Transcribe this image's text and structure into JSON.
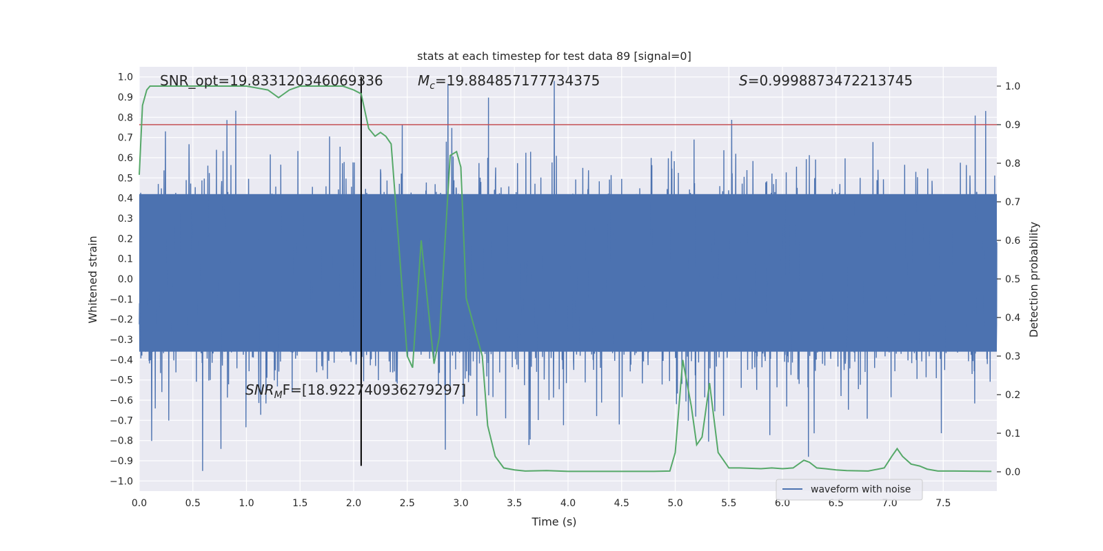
{
  "chart_data": {
    "type": "line",
    "title": "stats at each timestep for test data 89 [signal=0]",
    "xlabel": "Time (s)",
    "ylabel_left": "Whitened strain",
    "ylabel_right": "Detection probability",
    "xlim": [
      0,
      8
    ],
    "ylim_left": [
      -1.05,
      1.05
    ],
    "ylim_right": [
      -0.05,
      1.05
    ],
    "x_ticks": [
      0.0,
      0.5,
      1.0,
      1.5,
      2.0,
      2.5,
      3.0,
      3.5,
      4.0,
      4.5,
      5.0,
      5.5,
      6.0,
      6.5,
      7.0,
      7.5
    ],
    "x_tick_labels": [
      "0.0",
      "0.5",
      "1.0",
      "1.5",
      "2.0",
      "2.5",
      "3.0",
      "3.5",
      "4.0",
      "4.5",
      "5.0",
      "5.5",
      "6.0",
      "6.5",
      "7.0",
      "7.5"
    ],
    "y_left_ticks": [
      1.0,
      0.9,
      0.8,
      0.7,
      0.6,
      0.5,
      0.4,
      0.3,
      0.2,
      0.1,
      0.0,
      -0.1,
      -0.2,
      -0.3,
      -0.4,
      -0.5,
      -0.6,
      -0.7,
      -0.8,
      -0.9,
      -1.0
    ],
    "y_left_tick_labels": [
      "1.0",
      "0.9",
      "0.8",
      "0.7",
      "0.6",
      "0.5",
      "0.4",
      "0.3",
      "0.2",
      "0.1",
      "0.0",
      "−0.1",
      "−0.2",
      "−0.3",
      "−0.4",
      "−0.5",
      "−0.6",
      "−0.7",
      "−0.8",
      "−0.9",
      "−1.0"
    ],
    "y_right_ticks": [
      1.0,
      0.9,
      0.8,
      0.7,
      0.6,
      0.5,
      0.4,
      0.3,
      0.2,
      0.1,
      0.0
    ],
    "y_right_tick_labels": [
      "1.0",
      "0.9",
      "0.8",
      "0.7",
      "0.6",
      "0.5",
      "0.4",
      "0.3",
      "0.2",
      "0.1",
      "0.0"
    ],
    "grid": true,
    "annotations": {
      "snr_opt": "SNR_opt=19.833120346069336",
      "mc_symbol": "M",
      "mc_sub": "c",
      "mc_value": "=19.884857177734375",
      "s_symbol": "S",
      "s_value": "=0.9998873472213745",
      "snr_mf_symbol": "SNR",
      "snr_mf_sub": "M",
      "snr_mf_value": "F=[18.922740936279297]"
    },
    "threshold_line_y_right": 0.9,
    "vertical_marker_x": 2.07,
    "legend": {
      "placement": "lower-right",
      "entries": [
        "waveform with noise"
      ]
    },
    "series": [
      {
        "name": "waveform with noise",
        "axis": "left",
        "description_kind": "whitened noise strain, approx ±0.5 with spikes up to ±1.0",
        "color": "#4c72b0"
      },
      {
        "name": "",
        "axis": "right",
        "color": "#55a868",
        "x": [
          0.0,
          0.03,
          0.07,
          0.1,
          0.2,
          0.3,
          0.5,
          0.7,
          1.0,
          1.2,
          1.3,
          1.4,
          1.5,
          1.7,
          1.9,
          2.0,
          2.07,
          2.14,
          2.2,
          2.25,
          2.3,
          2.35,
          2.5,
          2.55,
          2.63,
          2.75,
          2.8,
          2.9,
          2.96,
          3.0,
          3.05,
          3.15,
          3.2,
          3.25,
          3.32,
          3.4,
          3.5,
          3.6,
          3.8,
          4.0,
          4.2,
          4.5,
          4.8,
          4.95,
          5.0,
          5.07,
          5.15,
          5.2,
          5.25,
          5.32,
          5.4,
          5.5,
          5.6,
          5.8,
          5.9,
          6.0,
          6.1,
          6.2,
          6.25,
          6.32,
          6.4,
          6.5,
          6.6,
          6.8,
          6.95,
          7.02,
          7.07,
          7.12,
          7.2,
          7.28,
          7.35,
          7.45,
          7.6,
          7.95
        ],
        "y": [
          0.77,
          0.95,
          0.99,
          1.0,
          1.0,
          1.0,
          1.0,
          1.0,
          1.0,
          0.99,
          0.97,
          0.99,
          1.0,
          1.0,
          1.0,
          0.99,
          0.98,
          0.89,
          0.87,
          0.88,
          0.87,
          0.85,
          0.3,
          0.27,
          0.6,
          0.28,
          0.35,
          0.82,
          0.83,
          0.79,
          0.45,
          0.35,
          0.3,
          0.12,
          0.04,
          0.01,
          0.005,
          0.002,
          0.003,
          0.001,
          0.001,
          0.001,
          0.001,
          0.002,
          0.05,
          0.29,
          0.17,
          0.07,
          0.09,
          0.23,
          0.05,
          0.01,
          0.01,
          0.008,
          0.01,
          0.008,
          0.01,
          0.03,
          0.025,
          0.01,
          0.008,
          0.005,
          0.003,
          0.002,
          0.01,
          0.04,
          0.06,
          0.04,
          0.02,
          0.015,
          0.007,
          0.002,
          0.002,
          0.001
        ]
      }
    ]
  }
}
